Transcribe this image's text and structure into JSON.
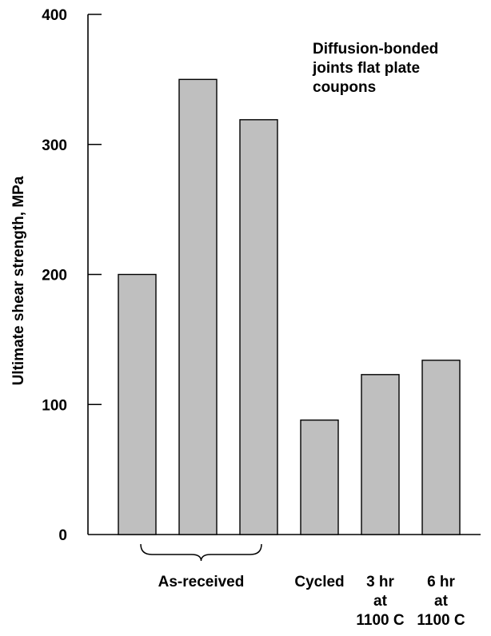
{
  "chart_data": {
    "type": "bar",
    "ylabel": "Ultimate shear strength, MPa",
    "ylim": [
      0,
      400
    ],
    "yticks": [
      0,
      100,
      200,
      300,
      400
    ],
    "grid": false,
    "values": [
      200,
      350,
      319,
      88,
      123,
      134
    ],
    "annotation": [
      "Diffusion-bonded",
      "joints flat plate",
      "coupons"
    ],
    "group_labels": [
      {
        "label": "As-received",
        "bars": [
          0,
          1,
          2
        ],
        "brace": true
      },
      {
        "label": "Cycled",
        "bars": [
          3
        ],
        "brace": false
      },
      {
        "label": "3 hr\nat\n1100 C",
        "bars": [
          4
        ],
        "brace": false
      },
      {
        "label": "6 hr\nat\n1100 C",
        "bars": [
          5
        ],
        "brace": false
      }
    ]
  }
}
